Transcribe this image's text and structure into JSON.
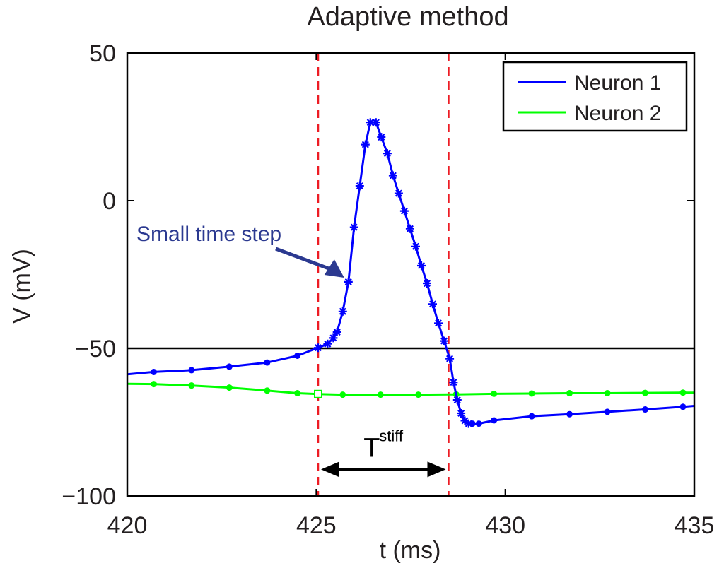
{
  "chart_data": {
    "type": "line",
    "title": "Adaptive method",
    "xlabel": "t (ms)",
    "ylabel": "V (mV)",
    "xlim": [
      420,
      435
    ],
    "ylim": [
      -100,
      50
    ],
    "xticks": [
      420,
      425,
      430,
      435
    ],
    "xtick_labels": [
      "420",
      "425",
      "430",
      "435"
    ],
    "yticks": [
      -100,
      -50,
      0,
      50
    ],
    "ytick_labels": [
      "−100",
      "−50",
      "0",
      "50"
    ],
    "grid": false,
    "legend_position": "top-right",
    "threshold": {
      "y": -50,
      "color": "#000000"
    },
    "vertical_markers": [
      {
        "x": 425.05,
        "color": "#ed1c24",
        "style": "dashed"
      },
      {
        "x": 428.5,
        "color": "#ed1c24",
        "style": "dashed"
      }
    ],
    "series": [
      {
        "name": "Neuron 1",
        "color": "#0000ff",
        "points": [
          [
            420,
            -58.8
          ],
          [
            420.7,
            -58
          ],
          [
            421.7,
            -57.4
          ],
          [
            422.7,
            -56.2
          ],
          [
            423.7,
            -54.8
          ],
          [
            424.5,
            -52.5
          ],
          [
            424.9,
            -50.5
          ],
          [
            425.05,
            -49.8
          ],
          [
            425.3,
            -48.5
          ],
          [
            425.45,
            -46.5
          ],
          [
            425.55,
            -44.5
          ],
          [
            425.7,
            -37.5
          ],
          [
            425.85,
            -27.5
          ],
          [
            426.0,
            -9
          ],
          [
            426.15,
            5
          ],
          [
            426.3,
            19
          ],
          [
            426.43,
            26.5
          ],
          [
            426.58,
            26.5
          ],
          [
            426.72,
            21.5
          ],
          [
            426.88,
            16
          ],
          [
            427.03,
            8.5
          ],
          [
            427.18,
            2.5
          ],
          [
            427.33,
            -3.5
          ],
          [
            427.48,
            -9.5
          ],
          [
            427.63,
            -15.5
          ],
          [
            427.78,
            -22
          ],
          [
            427.93,
            -28
          ],
          [
            428.08,
            -35
          ],
          [
            428.23,
            -41.5
          ],
          [
            428.38,
            -47.5
          ],
          [
            428.53,
            -53.5
          ],
          [
            428.63,
            -61.5
          ],
          [
            428.73,
            -67.5
          ],
          [
            428.83,
            -72
          ],
          [
            428.93,
            -74.5
          ],
          [
            429.03,
            -75.5
          ],
          [
            429.13,
            -75.5
          ],
          [
            429.3,
            -75.5
          ],
          [
            429.7,
            -74.4
          ],
          [
            430.7,
            -73
          ],
          [
            431.7,
            -72.3
          ],
          [
            432.7,
            -71.5
          ],
          [
            433.7,
            -70.7
          ],
          [
            434.7,
            -69.8
          ],
          [
            435.0,
            -69.5
          ]
        ],
        "marker_points_dot": [
          [
            420.7,
            -58
          ],
          [
            421.7,
            -57.4
          ],
          [
            422.7,
            -56.2
          ],
          [
            423.7,
            -54.8
          ],
          [
            424.5,
            -52.5
          ],
          [
            429.13,
            -75.5
          ],
          [
            429.3,
            -75.5
          ],
          [
            429.7,
            -74.4
          ],
          [
            430.7,
            -73
          ],
          [
            431.7,
            -72.3
          ],
          [
            432.7,
            -71.5
          ],
          [
            433.7,
            -70.7
          ],
          [
            434.7,
            -69.8
          ]
        ],
        "marker_points_star": [
          [
            425.05,
            -49.8
          ],
          [
            425.3,
            -48.5
          ],
          [
            425.45,
            -46.5
          ],
          [
            425.55,
            -44.5
          ],
          [
            425.7,
            -37.5
          ],
          [
            425.85,
            -27.5
          ],
          [
            426.0,
            -9
          ],
          [
            426.15,
            5
          ],
          [
            426.3,
            19
          ],
          [
            426.43,
            26.5
          ],
          [
            426.58,
            26.5
          ],
          [
            426.72,
            21.5
          ],
          [
            426.88,
            16
          ],
          [
            427.03,
            8.5
          ],
          [
            427.18,
            2.5
          ],
          [
            427.33,
            -3.5
          ],
          [
            427.48,
            -9.5
          ],
          [
            427.63,
            -15.5
          ],
          [
            427.78,
            -22
          ],
          [
            427.93,
            -28
          ],
          [
            428.08,
            -35
          ],
          [
            428.23,
            -41.5
          ],
          [
            428.38,
            -47.5
          ],
          [
            428.53,
            -53.5
          ],
          [
            428.63,
            -61.5
          ],
          [
            428.73,
            -67.5
          ],
          [
            428.83,
            -72
          ],
          [
            428.93,
            -74.5
          ],
          [
            429.03,
            -75.5
          ]
        ]
      },
      {
        "name": "Neuron 2",
        "color": "#00ff00",
        "points": [
          [
            420,
            -62
          ],
          [
            420.7,
            -62.1
          ],
          [
            421.7,
            -62.6
          ],
          [
            422.7,
            -63.3
          ],
          [
            423.7,
            -64.3
          ],
          [
            424.5,
            -65.2
          ],
          [
            425.05,
            -65.5
          ],
          [
            425.7,
            -65.7
          ],
          [
            426.7,
            -65.7
          ],
          [
            427.7,
            -65.7
          ],
          [
            428.7,
            -65.6
          ],
          [
            429.7,
            -65.4
          ],
          [
            430.7,
            -65.3
          ],
          [
            431.7,
            -65.2
          ],
          [
            432.7,
            -65.2
          ],
          [
            433.7,
            -65.1
          ],
          [
            434.7,
            -65.0
          ],
          [
            435.0,
            -65.0
          ]
        ],
        "marker_points_dot": [
          [
            420.7,
            -62.1
          ],
          [
            421.7,
            -62.6
          ],
          [
            422.7,
            -63.3
          ],
          [
            423.7,
            -64.3
          ],
          [
            424.5,
            -65.2
          ],
          [
            425.7,
            -65.7
          ],
          [
            426.7,
            -65.7
          ],
          [
            427.7,
            -65.7
          ],
          [
            428.7,
            -65.6
          ],
          [
            429.7,
            -65.4
          ],
          [
            430.7,
            -65.3
          ],
          [
            431.7,
            -65.2
          ],
          [
            432.7,
            -65.2
          ],
          [
            433.7,
            -65.1
          ],
          [
            434.7,
            -65.0
          ]
        ],
        "marker_points_square": [
          [
            425.05,
            -65.5
          ]
        ]
      }
    ],
    "annotations": [
      {
        "text": "Small time step",
        "target": [
          425.85,
          -27.5
        ],
        "color": "#2b3990"
      }
    ],
    "interval_annotation": {
      "label": "T",
      "label_superscript": "stiff",
      "x_start": 425.05,
      "x_end": 428.5,
      "y": -91
    }
  }
}
